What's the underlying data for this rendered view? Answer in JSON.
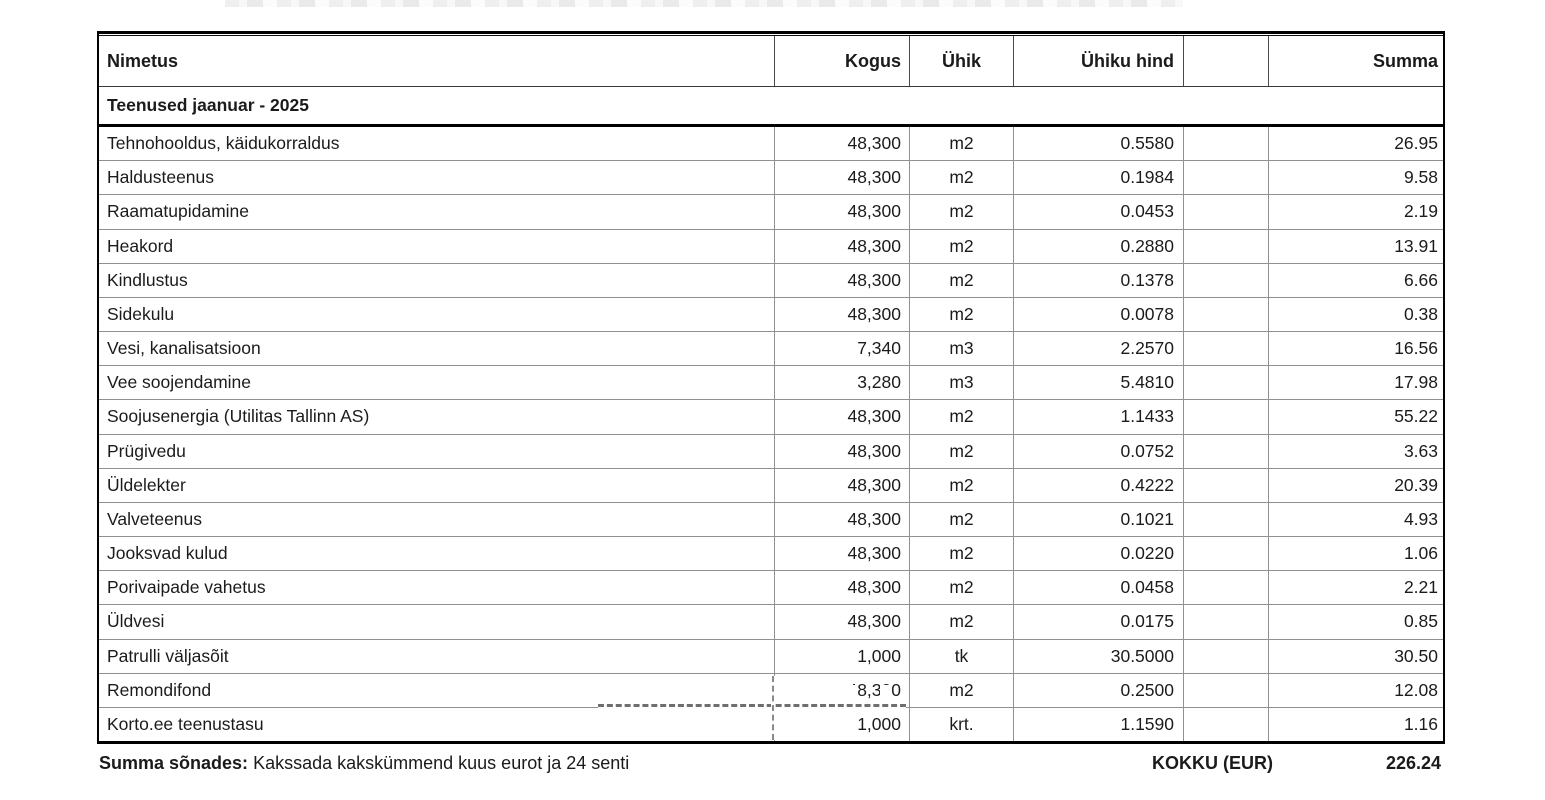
{
  "table": {
    "columns": [
      "Nimetus",
      "Kogus",
      "Ühik",
      "Ühiku hind",
      "",
      "Summa"
    ],
    "section_title": "Teenused jaanuar - 2025",
    "rows": [
      {
        "name": "Tehnohooldus, käidukorraldus",
        "qty": "48,300",
        "unit": "m2",
        "price": "0.5580",
        "sum": "26.95"
      },
      {
        "name": "Haldusteenus",
        "qty": "48,300",
        "unit": "m2",
        "price": "0.1984",
        "sum": "9.58"
      },
      {
        "name": "Raamatupidamine",
        "qty": "48,300",
        "unit": "m2",
        "price": "0.0453",
        "sum": "2.19"
      },
      {
        "name": "Heakord",
        "qty": "48,300",
        "unit": "m2",
        "price": "0.2880",
        "sum": "13.91"
      },
      {
        "name": "Kindlustus",
        "qty": "48,300",
        "unit": "m2",
        "price": "0.1378",
        "sum": "6.66"
      },
      {
        "name": "Sidekulu",
        "qty": "48,300",
        "unit": "m2",
        "price": "0.0078",
        "sum": "0.38"
      },
      {
        "name": "Vesi, kanalisatsioon",
        "qty": "7,340",
        "unit": "m3",
        "price": "2.2570",
        "sum": "16.56"
      },
      {
        "name": "Vee soojendamine",
        "qty": "3,280",
        "unit": "m3",
        "price": "5.4810",
        "sum": "17.98"
      },
      {
        "name": "Soojusenergia (Utilitas Tallinn AS)",
        "qty": "48,300",
        "unit": "m2",
        "price": "1.1433",
        "sum": "55.22"
      },
      {
        "name": "Prügivedu",
        "qty": "48,300",
        "unit": "m2",
        "price": "0.0752",
        "sum": "3.63"
      },
      {
        "name": "Üldelekter",
        "qty": "48,300",
        "unit": "m2",
        "price": "0.4222",
        "sum": "20.39"
      },
      {
        "name": "Valveteenus",
        "qty": "48,300",
        "unit": "m2",
        "price": "0.1021",
        "sum": "4.93"
      },
      {
        "name": "Jooksvad kulud",
        "qty": "48,300",
        "unit": "m2",
        "price": "0.0220",
        "sum": "1.06"
      },
      {
        "name": "Porivaipade vahetus",
        "qty": "48,300",
        "unit": "m2",
        "price": "0.0458",
        "sum": "2.21"
      },
      {
        "name": "Üldvesi",
        "qty": "48,300",
        "unit": "m2",
        "price": "0.0175",
        "sum": "0.85"
      },
      {
        "name": "Patrulli väljasõit",
        "qty": "1,000",
        "unit": "tk",
        "price": "30.5000",
        "sum": "30.50"
      },
      {
        "name": "Remondifond",
        "qty": "48,300",
        "unit": "m2",
        "price": "0.2500",
        "sum": "12.08"
      },
      {
        "name": "Korto.ee teenustasu",
        "qty": "1,000",
        "unit": "krt.",
        "price": "1.1590",
        "sum": "1.16"
      }
    ]
  },
  "footer": {
    "amount_in_words_label": "Summa sõnades:",
    "amount_in_words": "Kakssada kakskümmend kuus eurot ja 24 senti",
    "total_label": "KOKKU (EUR)",
    "total_value": "226.24"
  }
}
